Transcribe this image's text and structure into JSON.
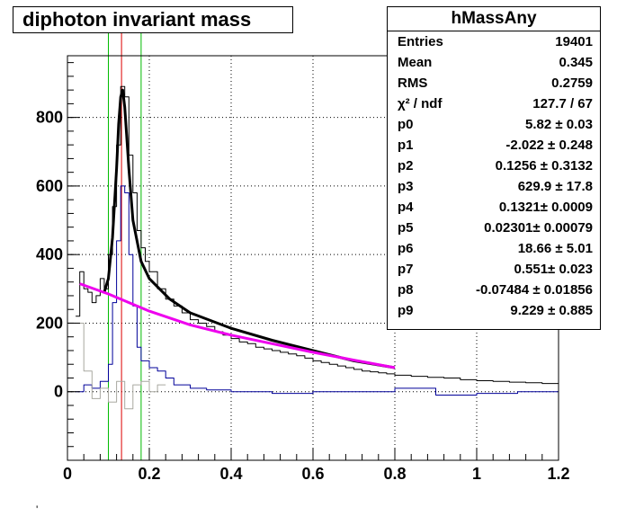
{
  "title": "diphoton invariant mass",
  "footer_mark": "'",
  "stats": {
    "name": "hMassAny",
    "rows": [
      {
        "key": "Entries",
        "value": "19401"
      },
      {
        "key": "Mean",
        "value": "0.345"
      },
      {
        "key": "RMS",
        "value": "0.2759"
      },
      {
        "key": "χ² / ndf",
        "value": "127.7 / 67"
      },
      {
        "key": "p0",
        "value": "5.82 ± 0.03"
      },
      {
        "key": "p1",
        "value": "-2.022 ± 0.248"
      },
      {
        "key": "p2",
        "value": "0.1256 ± 0.3132"
      },
      {
        "key": "p3",
        "value": "629.9 ± 17.8"
      },
      {
        "key": "p4",
        "value": "0.1321± 0.0009"
      },
      {
        "key": "p5",
        "value": "0.02301± 0.00079"
      },
      {
        "key": "p6",
        "value": "18.66 ± 5.01"
      },
      {
        "key": "p7",
        "value": "0.551± 0.023"
      },
      {
        "key": "p8",
        "value": "-0.07484 ± 0.01856"
      },
      {
        "key": "p9",
        "value": "9.229 ± 0.885"
      }
    ]
  },
  "colors": {
    "data": "#000000",
    "residual": "#000099",
    "difference": "#a8a8a0",
    "fit": "#000000",
    "background_fit": "#ee00ee",
    "peak_line": "#dd0000",
    "window_lines": "#00bb00",
    "grid": "#000000"
  },
  "chart_data": {
    "type": "line",
    "histogram": "hMassAny",
    "title": "diphoton invariant mass",
    "xlim": [
      0,
      1.2
    ],
    "ylim": [
      -200,
      980
    ],
    "x_ticks": [
      "0",
      "0.2",
      "0.4",
      "0.6",
      "0.8",
      "1",
      "1.2"
    ],
    "y_ticks": [
      "0",
      "200",
      "400",
      "600",
      "800"
    ],
    "grid": true,
    "legend": "top-right",
    "vertical_markers": {
      "peak": 0.1321,
      "window": [
        0.1,
        0.18
      ]
    },
    "series": [
      {
        "kind": "histogram",
        "role": "data",
        "x": [
          0.02,
          0.03,
          0.04,
          0.05,
          0.06,
          0.07,
          0.08,
          0.09,
          0.1,
          0.11,
          0.12,
          0.13,
          0.14,
          0.15,
          0.16,
          0.17,
          0.18,
          0.19,
          0.2,
          0.22,
          0.24,
          0.26,
          0.28,
          0.3,
          0.32,
          0.34,
          0.36,
          0.38,
          0.4,
          0.42,
          0.44,
          0.46,
          0.48,
          0.5,
          0.52,
          0.54,
          0.56,
          0.58,
          0.6,
          0.62,
          0.64,
          0.66,
          0.68,
          0.7,
          0.72,
          0.74,
          0.76,
          0.78,
          0.8,
          0.84,
          0.88,
          0.92,
          0.96,
          1.0,
          1.04,
          1.08,
          1.12,
          1.16,
          1.2
        ],
        "y": [
          220,
          350,
          300,
          290,
          260,
          280,
          330,
          300,
          400,
          540,
          720,
          890,
          860,
          690,
          580,
          470,
          420,
          380,
          350,
          300,
          270,
          250,
          230,
          210,
          200,
          190,
          175,
          165,
          155,
          145,
          140,
          130,
          125,
          120,
          115,
          110,
          105,
          98,
          90,
          85,
          80,
          75,
          70,
          65,
          60,
          58,
          55,
          52,
          48,
          45,
          42,
          40,
          35,
          32,
          30,
          28,
          26,
          24,
          22
        ]
      },
      {
        "kind": "histogram",
        "role": "background-subtracted",
        "x": [
          0.02,
          0.04,
          0.06,
          0.08,
          0.1,
          0.11,
          0.12,
          0.13,
          0.14,
          0.15,
          0.16,
          0.17,
          0.18,
          0.2,
          0.22,
          0.24,
          0.26,
          0.3,
          0.34,
          0.4,
          0.5,
          0.6,
          0.7,
          0.8,
          0.9,
          1.0,
          1.1,
          1.2
        ],
        "y": [
          0,
          20,
          10,
          30,
          80,
          260,
          440,
          600,
          580,
          400,
          250,
          130,
          90,
          70,
          60,
          40,
          20,
          10,
          5,
          0,
          -5,
          0,
          0,
          10,
          -10,
          -5,
          0,
          -10
        ]
      },
      {
        "kind": "histogram",
        "role": "difference",
        "x": [
          0.02,
          0.04,
          0.06,
          0.08,
          0.1,
          0.12,
          0.14,
          0.16,
          0.18,
          0.2,
          0.22
        ],
        "y": [
          200,
          60,
          -20,
          10,
          -30,
          30,
          -50,
          20,
          30,
          0,
          20
        ]
      },
      {
        "kind": "curve",
        "role": "total-fit",
        "x": [
          0.09,
          0.1,
          0.11,
          0.12,
          0.125,
          0.13,
          0.135,
          0.14,
          0.15,
          0.16,
          0.18,
          0.2,
          0.25,
          0.3,
          0.4,
          0.5,
          0.6,
          0.7,
          0.8
        ],
        "y": [
          290,
          330,
          450,
          650,
          780,
          860,
          880,
          830,
          650,
          500,
          380,
          330,
          270,
          230,
          185,
          150,
          120,
          90,
          70
        ]
      },
      {
        "kind": "curve",
        "role": "background-fit",
        "x": [
          0.03,
          0.1,
          0.2,
          0.3,
          0.4,
          0.5,
          0.6,
          0.7,
          0.8
        ],
        "y": [
          315,
          285,
          235,
          195,
          165,
          140,
          115,
          92,
          70
        ]
      }
    ]
  }
}
